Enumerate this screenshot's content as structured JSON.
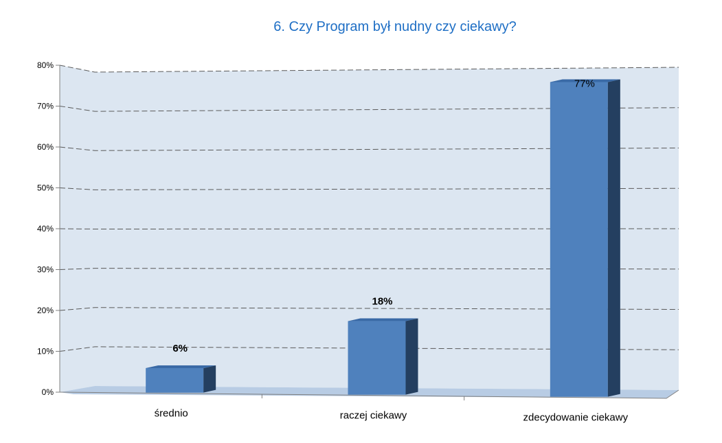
{
  "chart_data": {
    "type": "bar",
    "title": "6. Czy Program był nudny czy ciekawy?",
    "categories": [
      "średnio",
      "raczej ciekawy",
      "zdecydowanie ciekawy"
    ],
    "values": [
      6,
      18,
      77
    ],
    "data_labels": [
      "6%",
      "18%",
      "77%"
    ],
    "data_label_bold": [
      true,
      true,
      false
    ],
    "ylim": [
      0,
      80
    ],
    "yticks": [
      "0%",
      "10%",
      "20%",
      "30%",
      "40%",
      "50%",
      "60%",
      "70%",
      "80%"
    ],
    "grid": true,
    "style": "3d-column",
    "colors": {
      "bar_front": "#4f81bd",
      "bar_side": "#243f60",
      "bar_top": "#3a6aa6",
      "wall": "#dce6f1",
      "floor": "#b8cce4",
      "title": "#1f6fc5",
      "gridline": "#595959"
    }
  }
}
